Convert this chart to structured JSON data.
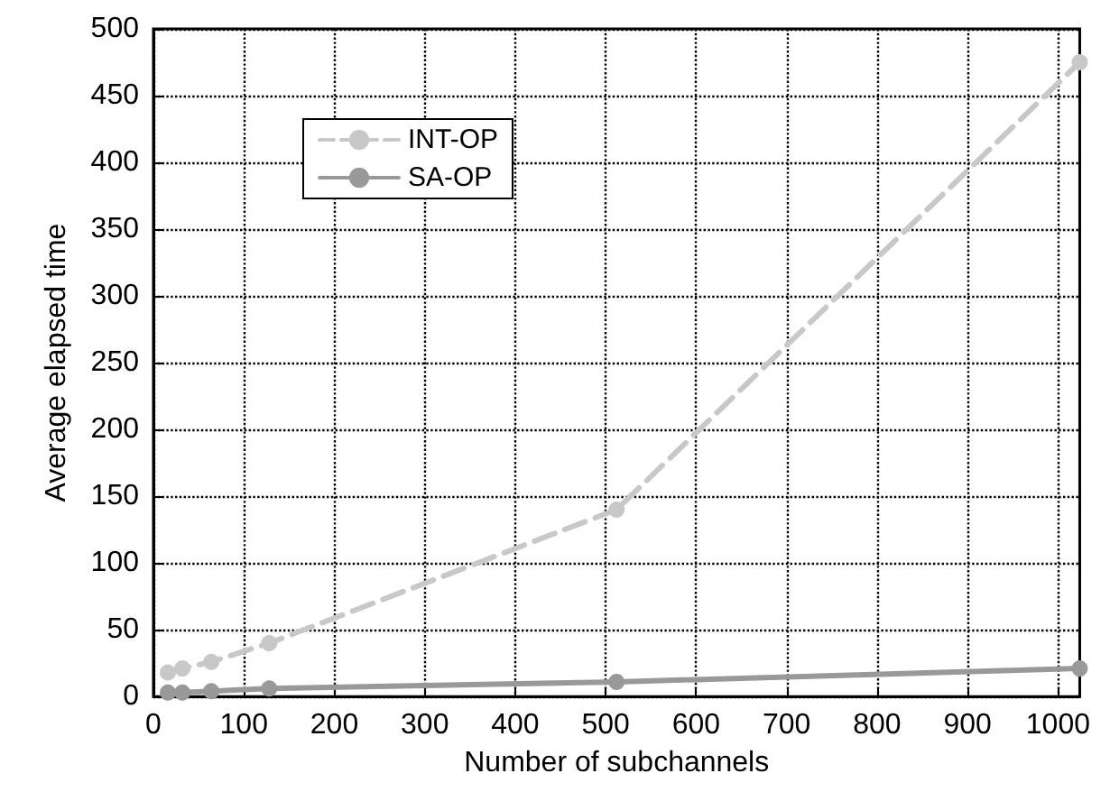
{
  "chart_data": {
    "type": "line",
    "xlabel": "Number of subchannels",
    "ylabel": "Average elapsed time",
    "x": [
      16,
      32,
      64,
      128,
      512,
      1024
    ],
    "series": [
      {
        "name": "INT-OP",
        "color": "#c8c8c8",
        "line_style": "dashed",
        "values": [
          18,
          21,
          26,
          40,
          140,
          475
        ]
      },
      {
        "name": "SA-OP",
        "color": "#999999",
        "line_style": "solid",
        "values": [
          3,
          3,
          4,
          6,
          11,
          21
        ]
      }
    ],
    "xlim": [
      0,
      1024
    ],
    "xticks": [
      0,
      100,
      200,
      300,
      400,
      500,
      600,
      700,
      800,
      900,
      1000
    ],
    "ylim": [
      0,
      500
    ],
    "yticks": [
      0,
      50,
      100,
      150,
      200,
      250,
      300,
      350,
      400,
      450,
      500
    ],
    "grid": true,
    "legend": "top left",
    "marker": "circle"
  }
}
